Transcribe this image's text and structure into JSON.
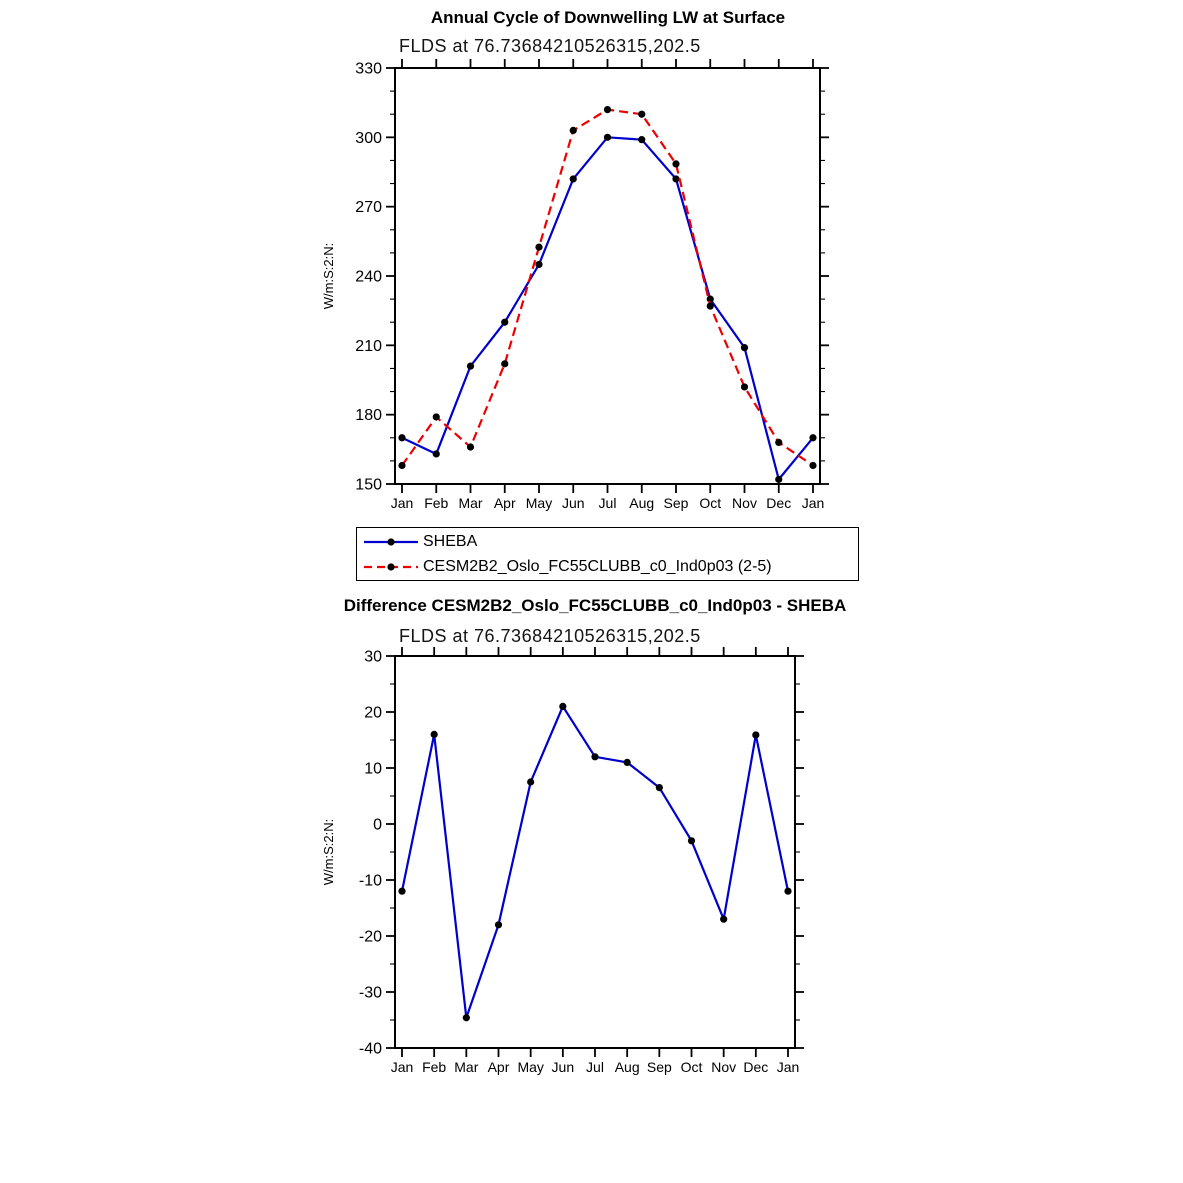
{
  "page": {
    "background": "#ffffff"
  },
  "chart_data": [
    {
      "type": "line",
      "title": "Annual Cycle of Downwelling LW at Surface",
      "subtitle": "FLDS at 76.73684210526315,202.5",
      "ylabel": "W/m:S:2:N:",
      "xlabel": "",
      "categories": [
        "Jan",
        "Feb",
        "Mar",
        "Apr",
        "May",
        "Jun",
        "Jul",
        "Aug",
        "Sep",
        "Oct",
        "Nov",
        "Dec",
        "Jan"
      ],
      "ylim": [
        150,
        330
      ],
      "ytick_labels": [
        "150",
        "180",
        "210",
        "240",
        "270",
        "300",
        "330"
      ],
      "ytick_major": 30,
      "ytick_minor": 10,
      "grid": false,
      "legend_position": "below",
      "series": [
        {
          "name": "SHEBA",
          "color": "#0000cc",
          "dash": "solid",
          "marker": "circle",
          "marker_color": "#000000",
          "values": [
            170,
            163,
            201,
            220,
            245,
            282,
            300,
            299,
            282,
            230,
            209,
            152,
            170
          ]
        },
        {
          "name": "CESM2B2_Oslo_FC55CLUBB_c0_Ind0p03 (2-5)",
          "color": "#ee0000",
          "dash": "dashed",
          "marker": "circle",
          "marker_color": "#000000",
          "values": [
            158,
            179,
            166,
            202,
            252.5,
            303,
            312,
            310,
            288.5,
            227,
            192,
            168,
            158
          ]
        }
      ]
    },
    {
      "type": "line",
      "title": "Difference CESM2B2_Oslo_FC55CLUBB_c0_Ind0p03 - SHEBA",
      "subtitle": "FLDS at 76.73684210526315,202.5",
      "ylabel": "W/m:S:2:N:",
      "xlabel": "",
      "categories": [
        "Jan",
        "Feb",
        "Mar",
        "Apr",
        "May",
        "Jun",
        "Jul",
        "Aug",
        "Sep",
        "Oct",
        "Nov",
        "Dec",
        "Jan"
      ],
      "ylim": [
        -40,
        30
      ],
      "ytick_labels": [
        "-40",
        "-30",
        "-20",
        "-10",
        "0",
        "10",
        "20",
        "30"
      ],
      "ytick_major": 10,
      "ytick_minor": 5,
      "grid": false,
      "legend_position": "none",
      "series": [
        {
          "name": "CESM2B2_Oslo_FC55CLUBB_c0_Ind0p03 - SHEBA",
          "color": "#0000cc",
          "dash": "solid",
          "marker": "circle",
          "marker_color": "#000000",
          "values": [
            -12,
            16,
            -34.6,
            -18,
            7.5,
            21,
            12,
            11,
            6.5,
            -3,
            -17,
            15.9,
            -12
          ]
        }
      ]
    }
  ]
}
